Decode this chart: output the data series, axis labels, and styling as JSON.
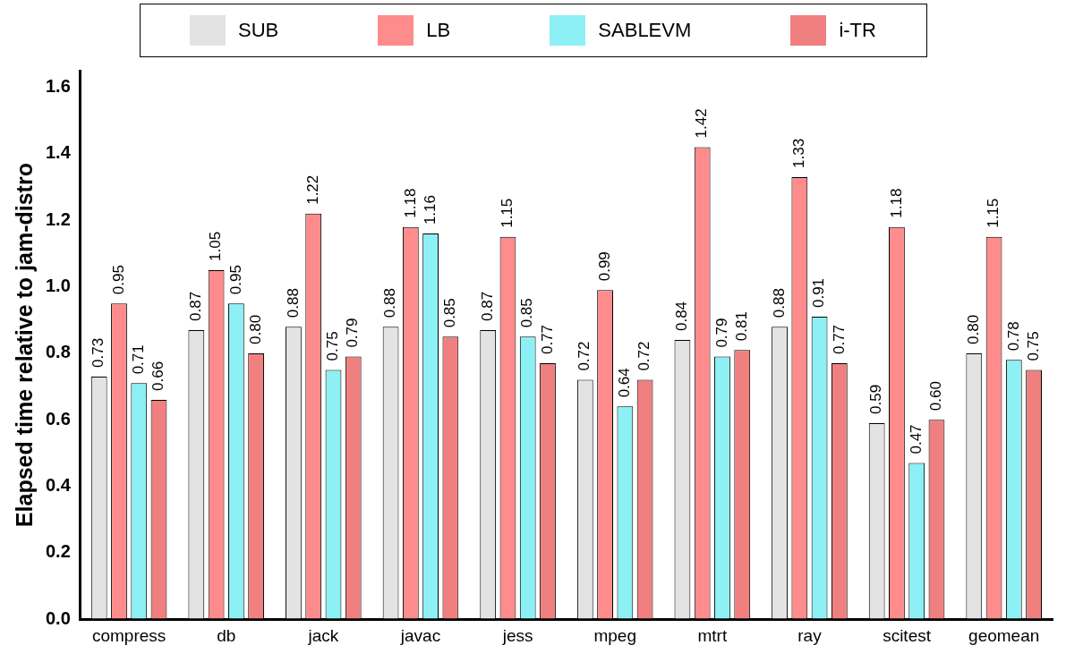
{
  "chart_data": {
    "type": "bar",
    "ylabel": "Elapsed time relative to jam-distro",
    "categories": [
      "compress",
      "db",
      "jack",
      "javac",
      "jess",
      "mpeg",
      "mtrt",
      "ray",
      "scitest",
      "geomean"
    ],
    "series": [
      {
        "name": "SUB",
        "color": "#e3e3e3",
        "values": [
          0.73,
          0.87,
          0.88,
          0.88,
          0.87,
          0.72,
          0.84,
          0.88,
          0.59,
          0.8
        ],
        "value_labels": [
          "0.73",
          "0.87",
          "0.88",
          "0.88",
          "0.87",
          "0.72",
          "0.84",
          "0.88",
          "0.59",
          "0.80"
        ]
      },
      {
        "name": "LB",
        "color": "#ff8c8c",
        "values": [
          0.95,
          1.05,
          1.22,
          1.18,
          1.15,
          0.99,
          1.42,
          1.33,
          1.18,
          1.15
        ],
        "value_labels": [
          "0.95",
          "1.05",
          "1.22",
          "1.18",
          "1.15",
          "0.99",
          "1.42",
          "1.33",
          "1.18",
          "1.15"
        ]
      },
      {
        "name": "SABLEVM",
        "color": "#8cf0f4",
        "values": [
          0.71,
          0.95,
          0.75,
          1.16,
          0.85,
          0.64,
          0.79,
          0.91,
          0.47,
          0.78
        ],
        "value_labels": [
          "0.71",
          "0.95",
          "0.75",
          "1.16",
          "0.85",
          "0.64",
          "0.79",
          "0.91",
          "0.47",
          "0.78"
        ]
      },
      {
        "name": "i-TR",
        "color": "#f08080",
        "values": [
          0.66,
          0.8,
          0.79,
          0.85,
          0.77,
          0.72,
          0.81,
          0.77,
          0.6,
          0.75
        ],
        "value_labels": [
          "0.66",
          "0.80",
          "0.79",
          "0.85",
          "0.77",
          "0.72",
          "0.81",
          "0.77",
          "0.60",
          "0.75"
        ]
      }
    ],
    "ylim": [
      0,
      1.65
    ],
    "yticks": [
      {
        "value": 0,
        "label": "0.0"
      },
      {
        "value": 0.2,
        "label": "0.2"
      },
      {
        "value": 0.4,
        "label": "0.4"
      },
      {
        "value": 0.6,
        "label": "0.6"
      },
      {
        "value": 0.8,
        "label": "0.8"
      },
      {
        "value": 1.0,
        "label": "1.0"
      },
      {
        "value": 1.2,
        "label": "1.2"
      },
      {
        "value": 1.4,
        "label": "1.4"
      },
      {
        "value": 1.6,
        "label": "1.6"
      }
    ],
    "grid": false,
    "legend": "top"
  }
}
